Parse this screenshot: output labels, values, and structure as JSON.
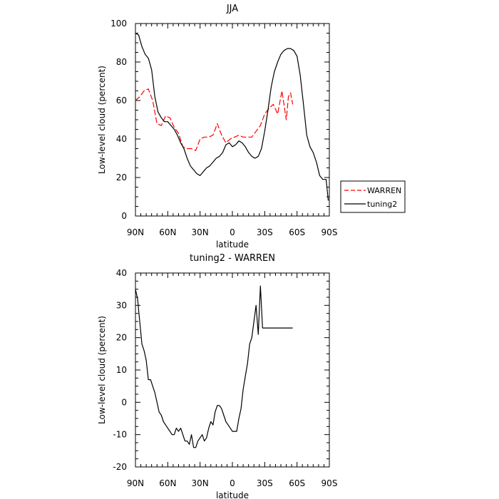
{
  "chart_data": [
    {
      "type": "line",
      "title": "JJA",
      "xlabel": "latitude",
      "ylabel": "Low-level cloud (percent)",
      "xlim": [
        90,
        -90
      ],
      "ylim": [
        0,
        100
      ],
      "xticks": [
        90,
        60,
        30,
        0,
        -30,
        -60,
        -90
      ],
      "xtick_labels": [
        "90N",
        "60N",
        "30N",
        "0",
        "30S",
        "60S",
        "90S"
      ],
      "yticks": [
        0,
        20,
        40,
        60,
        80,
        100
      ],
      "ytick_labels": [
        "0",
        "20",
        "40",
        "60",
        "80",
        "100"
      ],
      "legend": {
        "placement": "right",
        "entries": [
          "WARREN",
          "tuning2"
        ]
      },
      "series": [
        {
          "name": "WARREN",
          "color": "#ff0000",
          "style": "dashed",
          "x": [
            90,
            86,
            82,
            78,
            74,
            70,
            66,
            62,
            58,
            54,
            50,
            46,
            42,
            38,
            34,
            30,
            26,
            22,
            18,
            14,
            10,
            6,
            2,
            -2,
            -6,
            -10,
            -14,
            -18,
            -22,
            -26,
            -30,
            -34,
            -38,
            -42,
            -46,
            -50,
            -52,
            -54,
            -56
          ],
          "y": [
            60,
            62,
            65,
            66,
            60,
            48,
            47,
            52,
            51,
            46,
            43,
            36,
            35,
            35,
            34,
            40,
            41,
            41,
            42,
            48,
            42,
            38,
            40,
            41,
            42,
            41,
            41,
            41,
            44,
            47,
            53,
            56,
            58,
            53,
            65,
            50,
            62,
            64,
            58
          ]
        },
        {
          "name": "tuning2",
          "color": "#000000",
          "style": "solid",
          "x": [
            90,
            87,
            84,
            81,
            78,
            75,
            72,
            69,
            66,
            63,
            60,
            57,
            54,
            51,
            48,
            45,
            42,
            39,
            36,
            33,
            30,
            27,
            24,
            21,
            18,
            15,
            12,
            9,
            6,
            3,
            0,
            -3,
            -6,
            -9,
            -12,
            -15,
            -18,
            -21,
            -24,
            -27,
            -30,
            -33,
            -36,
            -39,
            -42,
            -45,
            -48,
            -51,
            -54,
            -57,
            -60,
            -63,
            -66,
            -69,
            -72,
            -75,
            -78,
            -81,
            -84,
            -87,
            -89
          ],
          "y": [
            95,
            94,
            88,
            84,
            82,
            76,
            62,
            54,
            51,
            49,
            49,
            47,
            45,
            42,
            38,
            35,
            30,
            26,
            24,
            22,
            21,
            23,
            25,
            26,
            28,
            30,
            31,
            33,
            37,
            38,
            36,
            37,
            39,
            38,
            36,
            33,
            31,
            30,
            31,
            35,
            44,
            55,
            67,
            75,
            80,
            84,
            86,
            87,
            87,
            86,
            83,
            73,
            58,
            42,
            36,
            33,
            28,
            21,
            19,
            19,
            8
          ]
        }
      ]
    },
    {
      "type": "line",
      "title": "tuning2 - WARREN",
      "xlabel": "latitude",
      "ylabel": "Low-level cloud (percent)",
      "xlim": [
        90,
        -90
      ],
      "ylim": [
        -20,
        40
      ],
      "xticks": [
        90,
        60,
        30,
        0,
        -30,
        -60,
        -90
      ],
      "xtick_labels": [
        "90N",
        "60N",
        "30N",
        "0",
        "30S",
        "60S",
        "90S"
      ],
      "yticks": [
        -20,
        -10,
        0,
        10,
        20,
        30,
        40
      ],
      "ytick_labels": [
        "-20",
        "-10",
        "0",
        "10",
        "20",
        "30",
        "40"
      ],
      "series": [
        {
          "color": "#000000",
          "style": "solid",
          "x": [
            90,
            88,
            86,
            84,
            82,
            80,
            78,
            76,
            74,
            72,
            70,
            68,
            66,
            64,
            62,
            60,
            58,
            56,
            54,
            52,
            50,
            48,
            46,
            44,
            42,
            40,
            38,
            36,
            34,
            32,
            30,
            28,
            26,
            24,
            22,
            20,
            18,
            16,
            14,
            12,
            10,
            8,
            6,
            4,
            2,
            0,
            -2,
            -4,
            -6,
            -8,
            -10,
            -12,
            -14,
            -16,
            -18,
            -20,
            -22,
            -24,
            -26,
            -28,
            -30,
            -32,
            -34,
            -36,
            -38,
            -40,
            -42,
            -44,
            -46,
            -48,
            -50,
            -52,
            -54,
            -56
          ],
          "y": [
            35,
            32,
            25,
            18,
            16,
            13,
            7,
            7,
            5,
            3,
            0,
            -3,
            -4,
            -6,
            -7,
            -8,
            -9,
            -10,
            -10,
            -8,
            -9,
            -8,
            -10,
            -12,
            -12,
            -13,
            -10,
            -14,
            -14,
            -12,
            -11,
            -10,
            -12,
            -11,
            -8,
            -6,
            -7,
            -3,
            -1,
            -1,
            -2,
            -4,
            -6,
            -7,
            -8,
            -9,
            -9,
            -9,
            -5,
            -2,
            4,
            8,
            12,
            18,
            20,
            25,
            30,
            21,
            36,
            23,
            23,
            23,
            23,
            23,
            23,
            23,
            23,
            23,
            23,
            23,
            23,
            23,
            23,
            23
          ]
        }
      ]
    }
  ]
}
